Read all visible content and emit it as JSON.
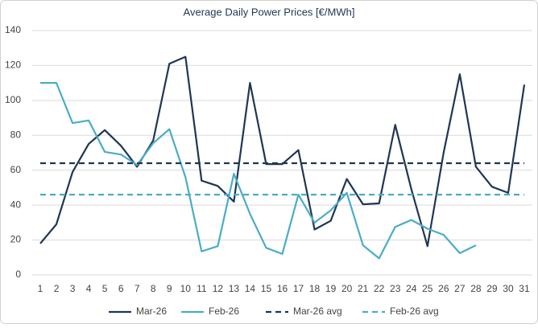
{
  "chart_data": {
    "type": "line",
    "title": "Average Daily Power Prices [€/MWh]",
    "categories": [
      "1",
      "2",
      "3",
      "4",
      "5",
      "6",
      "7",
      "8",
      "9",
      "10",
      "11",
      "12",
      "13",
      "14",
      "15",
      "16",
      "17",
      "18",
      "19",
      "20",
      "21",
      "22",
      "23",
      "24",
      "25",
      "26",
      "27",
      "28",
      "29",
      "30",
      "31"
    ],
    "ylim": [
      0,
      140
    ],
    "yticks": [
      0,
      20,
      40,
      60,
      80,
      100,
      120,
      140
    ],
    "grid": true,
    "legend": "bottom",
    "series": [
      {
        "name": "Mar-26",
        "color": "#1f3654",
        "dash": false,
        "values": [
          18,
          29,
          59,
          75,
          83,
          74,
          62,
          77,
          121,
          125,
          54,
          51,
          42,
          110,
          63.5,
          63.5,
          71.5,
          26,
          31,
          55,
          40.5,
          41,
          86,
          49,
          16.5,
          70,
          115,
          62,
          50.5,
          47,
          109
        ]
      },
      {
        "name": "Feb-26",
        "color": "#4bacc6",
        "dash": false,
        "values": [
          110,
          110,
          87,
          88.5,
          70.5,
          69,
          63,
          75.5,
          83.5,
          56,
          13.5,
          16.5,
          58,
          35,
          15.5,
          12,
          46,
          30,
          37,
          47,
          17,
          9.5,
          27.5,
          31.5,
          26.5,
          23,
          12.5,
          17,
          null,
          null,
          null
        ]
      },
      {
        "name": "Mar-26 avg",
        "color": "#1f3654",
        "dash": true,
        "values": [
          64,
          64,
          64,
          64,
          64,
          64,
          64,
          64,
          64,
          64,
          64,
          64,
          64,
          64,
          64,
          64,
          64,
          64,
          64,
          64,
          64,
          64,
          64,
          64,
          64,
          64,
          64,
          64,
          64,
          64,
          64
        ]
      },
      {
        "name": "Feb-26 avg",
        "color": "#4bacc6",
        "dash": true,
        "values": [
          46,
          46,
          46,
          46,
          46,
          46,
          46,
          46,
          46,
          46,
          46,
          46,
          46,
          46,
          46,
          46,
          46,
          46,
          46,
          46,
          46,
          46,
          46,
          46,
          46,
          46,
          46,
          46,
          46,
          46,
          46
        ]
      }
    ]
  }
}
